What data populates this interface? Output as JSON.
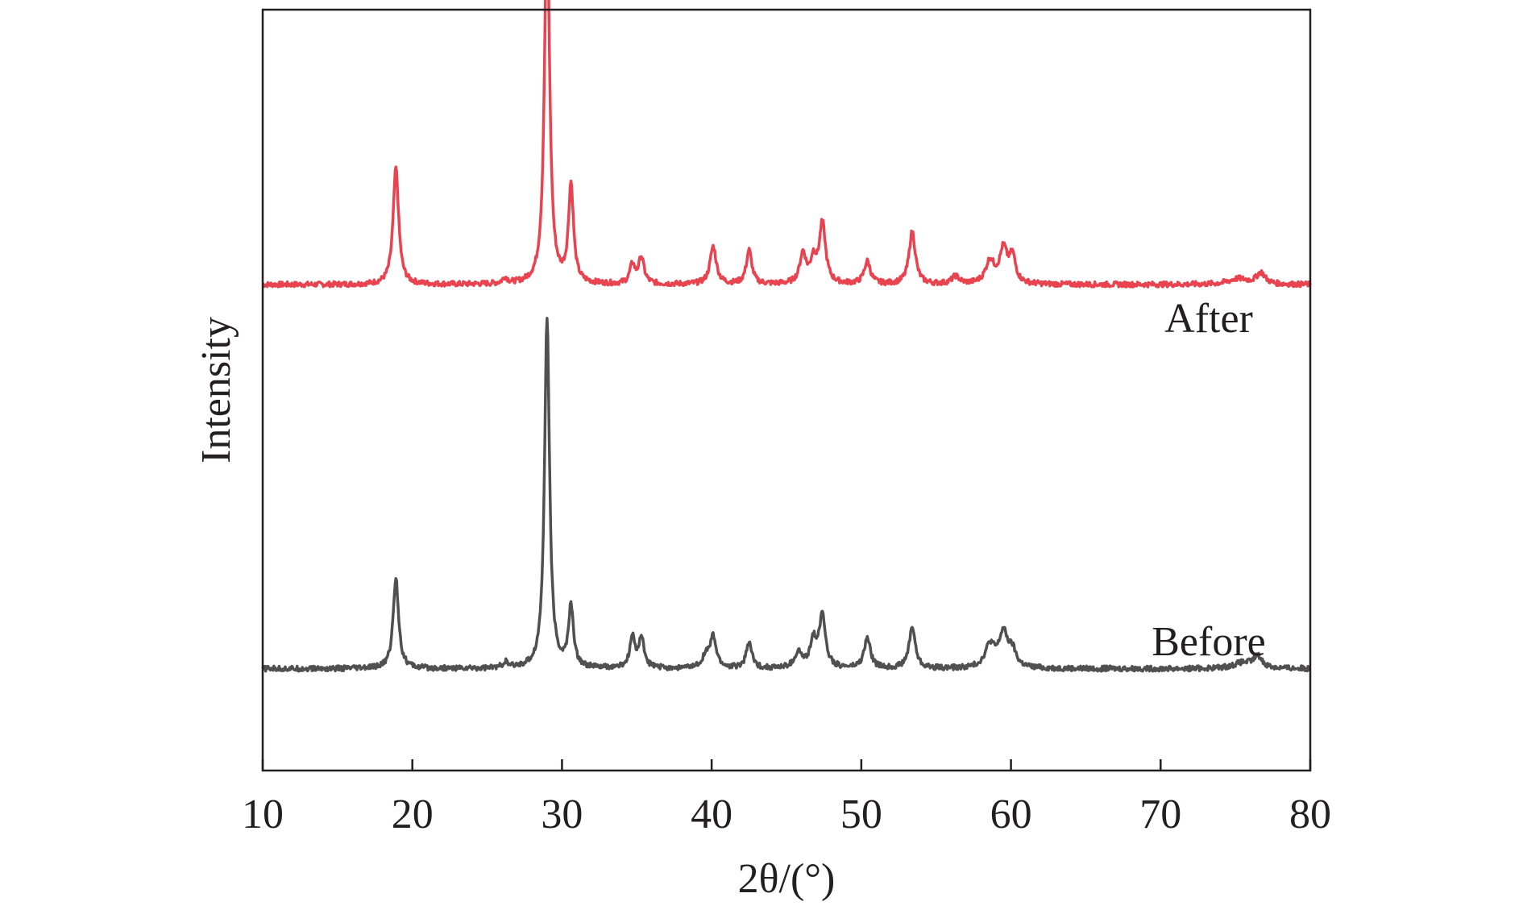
{
  "chart_data": {
    "type": "line",
    "xlabel": "2θ/(°)",
    "ylabel": "Intensity",
    "xlim": [
      10,
      80
    ],
    "x_ticks": [
      10,
      20,
      30,
      40,
      50,
      60,
      70,
      80
    ],
    "y_ticks": [],
    "grid": false,
    "legend": "none",
    "series": [
      {
        "name": "After",
        "color": "#e8434f",
        "baseline": 0.29,
        "peaks": [
          {
            "x": 18.9,
            "height": 0.31,
            "width": 0.22
          },
          {
            "x": 26.2,
            "height": 0.015,
            "width": 0.2
          },
          {
            "x": 29.0,
            "height": 1.0,
            "width": 0.2
          },
          {
            "x": 30.6,
            "height": 0.26,
            "width": 0.2
          },
          {
            "x": 34.7,
            "height": 0.05,
            "width": 0.2
          },
          {
            "x": 35.3,
            "height": 0.07,
            "width": 0.22
          },
          {
            "x": 40.1,
            "height": 0.1,
            "width": 0.25
          },
          {
            "x": 42.5,
            "height": 0.09,
            "width": 0.22
          },
          {
            "x": 46.1,
            "height": 0.08,
            "width": 0.25
          },
          {
            "x": 46.8,
            "height": 0.06,
            "width": 0.22
          },
          {
            "x": 47.4,
            "height": 0.16,
            "width": 0.25
          },
          {
            "x": 50.4,
            "height": 0.06,
            "width": 0.25
          },
          {
            "x": 53.4,
            "height": 0.14,
            "width": 0.25
          },
          {
            "x": 56.3,
            "height": 0.02,
            "width": 0.3
          },
          {
            "x": 58.6,
            "height": 0.06,
            "width": 0.35
          },
          {
            "x": 59.5,
            "height": 0.09,
            "width": 0.3
          },
          {
            "x": 60.1,
            "height": 0.07,
            "width": 0.25
          },
          {
            "x": 75.2,
            "height": 0.015,
            "width": 0.8
          },
          {
            "x": 76.7,
            "height": 0.03,
            "width": 0.35
          }
        ],
        "noise": 0.007
      },
      {
        "name": "Before",
        "color": "#505050",
        "baseline": -0.73,
        "peaks": [
          {
            "x": 18.9,
            "height": 0.24,
            "width": 0.22
          },
          {
            "x": 26.2,
            "height": 0.015,
            "width": 0.2
          },
          {
            "x": 29.0,
            "height": 0.93,
            "width": 0.2
          },
          {
            "x": 30.6,
            "height": 0.16,
            "width": 0.2
          },
          {
            "x": 34.7,
            "height": 0.08,
            "width": 0.2
          },
          {
            "x": 35.3,
            "height": 0.08,
            "width": 0.22
          },
          {
            "x": 39.6,
            "height": 0.03,
            "width": 0.3
          },
          {
            "x": 40.1,
            "height": 0.08,
            "width": 0.25
          },
          {
            "x": 42.5,
            "height": 0.07,
            "width": 0.22
          },
          {
            "x": 45.8,
            "height": 0.04,
            "width": 0.3
          },
          {
            "x": 46.8,
            "height": 0.07,
            "width": 0.25
          },
          {
            "x": 47.4,
            "height": 0.14,
            "width": 0.25
          },
          {
            "x": 50.4,
            "height": 0.08,
            "width": 0.25
          },
          {
            "x": 53.4,
            "height": 0.11,
            "width": 0.25
          },
          {
            "x": 58.6,
            "height": 0.06,
            "width": 0.4
          },
          {
            "x": 59.5,
            "height": 0.09,
            "width": 0.35
          },
          {
            "x": 60.1,
            "height": 0.04,
            "width": 0.3
          },
          {
            "x": 75.5,
            "height": 0.015,
            "width": 0.8
          },
          {
            "x": 76.5,
            "height": 0.03,
            "width": 0.35
          }
        ],
        "noise": 0.007
      }
    ]
  }
}
